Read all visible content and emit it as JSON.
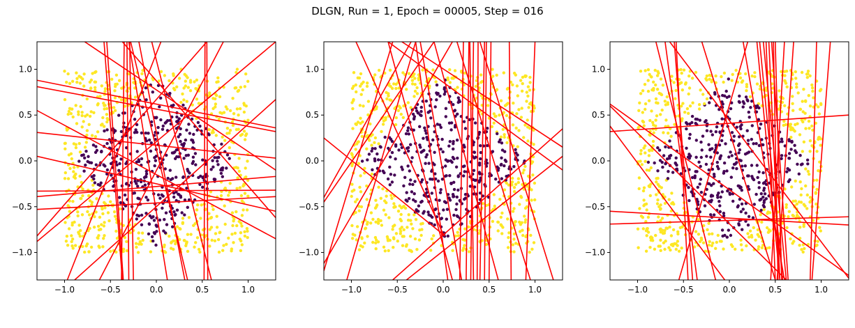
{
  "suptitle": "DLGN, Run = 1, Epoch = 00005, Step = 016",
  "colors": {
    "class0": "#440154",
    "class1": "#fde725",
    "lines": "#ff0000",
    "axes": "#000000"
  },
  "chart_data": [
    {
      "type": "scatter",
      "title": "",
      "xlabel": "",
      "ylabel": "",
      "xlim": [
        -1.3,
        1.3
      ],
      "ylim": [
        -1.3,
        1.3
      ],
      "xticks": [
        -1.0,
        -0.5,
        0.0,
        0.5,
        1.0
      ],
      "yticks": [
        -1.0,
        -0.5,
        0.0,
        0.5,
        1.0
      ],
      "xtick_labels": [
        "−1.0",
        "−0.5",
        "0.0",
        "0.5",
        "1.0"
      ],
      "ytick_labels": [
        "−1.0",
        "−0.5",
        "0.0",
        "0.5",
        "1.0"
      ],
      "grid": false,
      "points_description": "Points uniform in square [-1,1]^2; purple (class 0) inside a rotated-square region |x|+|y|<~0.9, yellow (class 1) outside",
      "lines": [
        [
          [
            -1.3,
            0.88
          ],
          [
            1.3,
            0.36
          ]
        ],
        [
          [
            -1.3,
            0.81
          ],
          [
            1.3,
            0.32
          ]
        ],
        [
          [
            -1.3,
            0.31
          ],
          [
            1.3,
            0.03
          ]
        ],
        [
          [
            -1.3,
            0.55
          ],
          [
            1.3,
            -0.85
          ]
        ],
        [
          [
            -1.3,
            0.05
          ],
          [
            1.3,
            -0.55
          ]
        ],
        [
          [
            -1.3,
            -0.33
          ],
          [
            1.3,
            -0.32
          ]
        ],
        [
          [
            -1.3,
            -0.39
          ],
          [
            1.3,
            -0.17
          ]
        ],
        [
          [
            -1.3,
            -0.53
          ],
          [
            1.3,
            -0.39
          ]
        ],
        [
          [
            -1.3,
            -0.88
          ],
          [
            1.3,
            1.3
          ]
        ],
        [
          [
            -0.89,
            -1.3
          ],
          [
            1.3,
            0.67
          ]
        ],
        [
          [
            -1.3,
            -0.82
          ],
          [
            0.55,
            1.3
          ]
        ],
        [
          [
            -0.62,
            -1.3
          ],
          [
            0.73,
            1.3
          ]
        ],
        [
          [
            -0.97,
            -1.3
          ],
          [
            0.05,
            1.3
          ]
        ],
        [
          [
            -0.19,
            1.3
          ],
          [
            0.31,
            -1.3
          ]
        ],
        [
          [
            -0.37,
            1.3
          ],
          [
            1.3,
            -0.62
          ]
        ],
        [
          [
            -0.57,
            1.3
          ],
          [
            -0.37,
            -1.3
          ]
        ],
        [
          [
            -0.54,
            1.3
          ],
          [
            -0.36,
            -1.3
          ]
        ],
        [
          [
            -0.38,
            -1.3
          ],
          [
            -0.35,
            1.3
          ]
        ],
        [
          [
            -0.3,
            -1.3
          ],
          [
            -0.32,
            1.3
          ]
        ],
        [
          [
            -0.25,
            -1.3
          ],
          [
            -0.29,
            1.3
          ]
        ],
        [
          [
            -0.3,
            1.3
          ],
          [
            0.12,
            -1.3
          ]
        ],
        [
          [
            -0.28,
            1.3
          ],
          [
            0.34,
            -1.3
          ]
        ],
        [
          [
            0.52,
            -1.3
          ],
          [
            0.53,
            1.3
          ]
        ],
        [
          [
            0.56,
            -1.3
          ],
          [
            0.55,
            1.3
          ]
        ],
        [
          [
            -0.78,
            1.3
          ],
          [
            1.3,
            -0.1
          ]
        ],
        [
          [
            -0.05,
            1.3
          ],
          [
            0.6,
            -1.3
          ]
        ]
      ]
    },
    {
      "type": "scatter",
      "title": "",
      "xlabel": "",
      "ylabel": "",
      "xlim": [
        -1.3,
        1.3
      ],
      "ylim": [
        -1.3,
        1.3
      ],
      "xticks": [
        -1.0,
        -0.5,
        0.0,
        0.5,
        1.0
      ],
      "yticks": [
        -1.0,
        -0.5,
        0.0,
        0.5,
        1.0
      ],
      "xtick_labels": [
        "−1.0",
        "−0.5",
        "0.0",
        "0.5",
        "1.0"
      ],
      "ytick_labels": [
        "−1.0",
        "−0.5",
        "0.0",
        "0.5",
        "1.0"
      ],
      "grid": false,
      "points_description": "Points uniform in square [-1,1]^2; purple (class 0) inside a rotated-square region |x|+|y|<~0.9, yellow (class 1) outside",
      "lines": [
        [
          [
            -1.3,
            0.25
          ],
          [
            0.02,
            -0.82
          ]
        ],
        [
          [
            -1.3,
            -0.45
          ],
          [
            -0.1,
            1.3
          ]
        ],
        [
          [
            -1.3,
            -1.12
          ],
          [
            0.1,
            1.3
          ]
        ],
        [
          [
            -1.3,
            -1.2
          ],
          [
            -0.55,
            1.3
          ]
        ],
        [
          [
            -1.05,
            -1.3
          ],
          [
            -0.3,
            1.3
          ]
        ],
        [
          [
            -0.95,
            1.3
          ],
          [
            0.0,
            -0.8
          ]
        ],
        [
          [
            -0.6,
            1.3
          ],
          [
            1.3,
            -0.1
          ]
        ],
        [
          [
            -0.45,
            1.3
          ],
          [
            1.3,
            0.15
          ]
        ],
        [
          [
            -0.55,
            -1.3
          ],
          [
            1.3,
            0.35
          ]
        ],
        [
          [
            -0.3,
            1.3
          ],
          [
            0.05,
            -1.3
          ]
        ],
        [
          [
            -0.6,
            1.3
          ],
          [
            0.1,
            -1.3
          ]
        ],
        [
          [
            -0.1,
            1.3
          ],
          [
            0.6,
            -1.3
          ]
        ],
        [
          [
            0.15,
            1.3
          ],
          [
            0.95,
            -1.3
          ]
        ],
        [
          [
            0.4,
            1.3
          ],
          [
            1.2,
            -1.3
          ]
        ],
        [
          [
            -0.25,
            1.3
          ],
          [
            0.2,
            -1.3
          ]
        ],
        [
          [
            0.25,
            -1.3
          ],
          [
            0.28,
            1.3
          ]
        ],
        [
          [
            0.3,
            -1.3
          ],
          [
            0.33,
            1.3
          ]
        ],
        [
          [
            0.33,
            -1.3
          ],
          [
            0.29,
            1.3
          ]
        ],
        [
          [
            0.37,
            -1.3
          ],
          [
            0.38,
            1.3
          ]
        ],
        [
          [
            0.4,
            -1.3
          ],
          [
            0.45,
            1.3
          ]
        ],
        [
          [
            0.45,
            -1.3
          ],
          [
            0.47,
            1.3
          ]
        ],
        [
          [
            0.5,
            -1.3
          ],
          [
            0.52,
            1.3
          ]
        ],
        [
          [
            0.18,
            -1.3
          ],
          [
            0.22,
            1.3
          ]
        ],
        [
          [
            0.74,
            -1.3
          ],
          [
            0.72,
            1.3
          ]
        ],
        [
          [
            0.9,
            -1.3
          ],
          [
            1.0,
            1.3
          ]
        ],
        [
          [
            -1.3,
            -0.4
          ],
          [
            -0.35,
            1.3
          ]
        ],
        [
          [
            -0.4,
            -1.3
          ],
          [
            1.3,
            0.05
          ]
        ]
      ]
    },
    {
      "type": "scatter",
      "title": "",
      "xlabel": "",
      "ylabel": "",
      "xlim": [
        -1.3,
        1.3
      ],
      "ylim": [
        -1.3,
        1.3
      ],
      "xticks": [
        -1.0,
        -0.5,
        0.0,
        0.5,
        1.0
      ],
      "yticks": [
        -1.0,
        -0.5,
        0.0,
        0.5,
        1.0
      ],
      "xtick_labels": [
        "−1.0",
        "−0.5",
        "0.0",
        "0.5",
        "1.0"
      ],
      "ytick_labels": [
        "−1.0",
        "−0.5",
        "0.0",
        "0.5",
        "1.0"
      ],
      "grid": false,
      "points_description": "Points uniform in square [-1,1]^2; purple (class 0) inside a rotated-square region |x|+|y|<~0.9, yellow (class 1) outside",
      "lines": [
        [
          [
            -1.3,
            0.32
          ],
          [
            1.3,
            0.5
          ]
        ],
        [
          [
            -1.3,
            0.62
          ],
          [
            1.3,
            -1.25
          ]
        ],
        [
          [
            -1.3,
            0.38
          ],
          [
            -0.05,
            -1.3
          ]
        ],
        [
          [
            -1.3,
            -0.55
          ],
          [
            1.3,
            -0.7
          ]
        ],
        [
          [
            -1.3,
            -0.69
          ],
          [
            1.3,
            -0.61
          ]
        ],
        [
          [
            -0.65,
            1.3
          ],
          [
            1.3,
            -1.28
          ]
        ],
        [
          [
            -0.8,
            1.3
          ],
          [
            -0.15,
            -1.3
          ]
        ],
        [
          [
            -0.7,
            1.3
          ],
          [
            -0.35,
            -1.3
          ]
        ],
        [
          [
            -0.6,
            1.3
          ],
          [
            -0.4,
            -1.3
          ]
        ],
        [
          [
            -0.58,
            1.3
          ],
          [
            -0.45,
            -1.3
          ]
        ],
        [
          [
            -0.3,
            1.3
          ],
          [
            0.5,
            -1.3
          ]
        ],
        [
          [
            0.15,
            1.3
          ],
          [
            0.6,
            -1.3
          ]
        ],
        [
          [
            0.3,
            1.3
          ],
          [
            0.55,
            -1.3
          ]
        ],
        [
          [
            0.33,
            1.3
          ],
          [
            0.58,
            -1.3
          ]
        ],
        [
          [
            0.37,
            1.3
          ],
          [
            0.62,
            -1.3
          ]
        ],
        [
          [
            0.4,
            1.3
          ],
          [
            0.5,
            -1.3
          ]
        ],
        [
          [
            0.43,
            1.3
          ],
          [
            0.55,
            -1.3
          ]
        ],
        [
          [
            0.46,
            1.3
          ],
          [
            0.64,
            -1.3
          ]
        ],
        [
          [
            0.48,
            1.3
          ],
          [
            0.53,
            -1.3
          ]
        ],
        [
          [
            0.5,
            1.3
          ],
          [
            0.57,
            -1.3
          ]
        ],
        [
          [
            0.6,
            1.3
          ],
          [
            0.45,
            -1.3
          ]
        ],
        [
          [
            0.7,
            1.3
          ],
          [
            0.52,
            -1.3
          ]
        ],
        [
          [
            0.95,
            1.3
          ],
          [
            0.88,
            -1.3
          ]
        ],
        [
          [
            1.1,
            1.3
          ],
          [
            0.9,
            -1.3
          ]
        ],
        [
          [
            -1.3,
            0.6
          ],
          [
            0.62,
            -1.3
          ]
        ],
        [
          [
            -0.55,
            -1.3
          ],
          [
            0.2,
            1.3
          ]
        ]
      ]
    }
  ]
}
